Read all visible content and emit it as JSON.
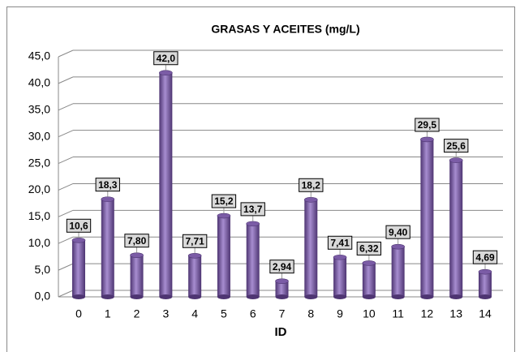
{
  "chart_data": {
    "type": "bar",
    "title": "GRASAS Y ACEITES (mg/L)",
    "x_label": "ID",
    "categories": [
      "0",
      "1",
      "2",
      "3",
      "4",
      "5",
      "6",
      "7",
      "8",
      "9",
      "10",
      "11",
      "12",
      "13",
      "14"
    ],
    "values": [
      10.6,
      18.3,
      7.8,
      42.0,
      7.71,
      15.2,
      13.7,
      2.94,
      18.2,
      7.41,
      6.32,
      9.4,
      29.5,
      25.6,
      4.69
    ],
    "value_labels": [
      "10,6",
      "18,3",
      "7,80",
      "42,0",
      "7,71",
      "15,2",
      "13,7",
      "2,94",
      "18,2",
      "7,41",
      "6,32",
      "9,40",
      "29,5",
      "25,6",
      "4,69"
    ],
    "color": "#7b5ca6",
    "ylim": [
      0,
      45
    ],
    "yticks": [
      {
        "value": 0,
        "label": "0,0"
      },
      {
        "value": 5,
        "label": "5,0"
      },
      {
        "value": 10,
        "label": "10,0"
      },
      {
        "value": 15,
        "label": "15,0"
      },
      {
        "value": 20,
        "label": "20,0"
      },
      {
        "value": 25,
        "label": "25,0"
      },
      {
        "value": 30,
        "label": "30,0"
      },
      {
        "value": 35,
        "label": "35,0"
      },
      {
        "value": 40,
        "label": "40,0"
      },
      {
        "value": 45,
        "label": "45,0"
      }
    ],
    "grid": true
  }
}
